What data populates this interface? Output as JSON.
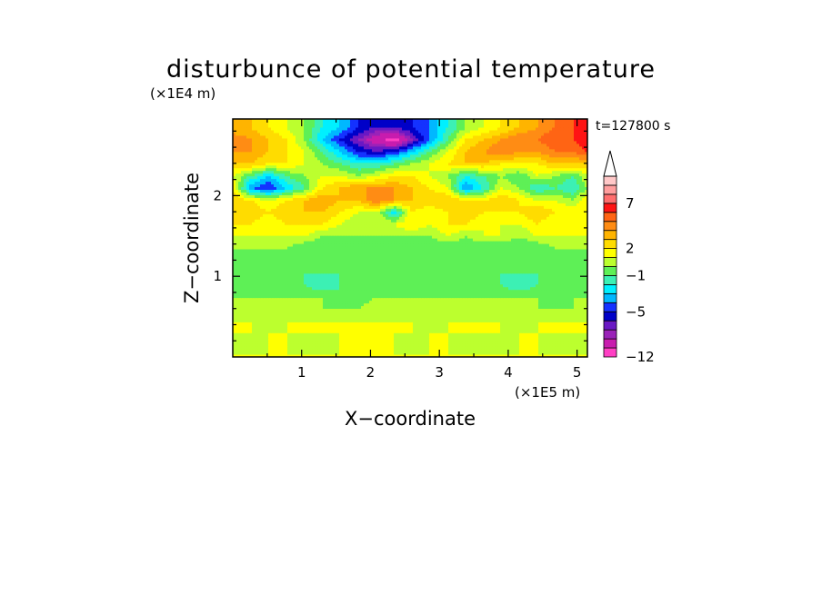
{
  "chart_data": {
    "type": "heatmap",
    "title": "disturbunce of potential temperature",
    "xlabel": "X−coordinate",
    "ylabel": "Z−coordinate",
    "x_unit": "(×1E5 m)",
    "y_unit": "(×1E4 m)",
    "time_label": "t=127800 s",
    "xlim": [
      0,
      5.15
    ],
    "ylim": [
      0,
      2.95
    ],
    "x_ticks": [
      {
        "v": 1,
        "label": "1"
      },
      {
        "v": 2,
        "label": "2"
      },
      {
        "v": 3,
        "label": "3"
      },
      {
        "v": 4,
        "label": "4"
      },
      {
        "v": 5,
        "label": "5"
      }
    ],
    "y_ticks": [
      {
        "v": 1,
        "label": "1"
      },
      {
        "v": 2,
        "label": "2"
      }
    ],
    "colorbar": {
      "levels": [
        -12,
        -10,
        -8,
        -7,
        -6,
        -5,
        -4,
        -3,
        -2,
        -1,
        0,
        1,
        2,
        3,
        4,
        5,
        6,
        7,
        8,
        9,
        10
      ],
      "colors": [
        "#ff3fc4",
        "#c81cae",
        "#9a22b8",
        "#6a18c4",
        "#0000c8",
        "#1432ff",
        "#00b8ff",
        "#00f0ff",
        "#3cf0b4",
        "#5ef056",
        "#bcff2e",
        "#ffff00",
        "#ffdc00",
        "#ffb400",
        "#ff8c14",
        "#ff6414",
        "#ff1414",
        "#ff6e6e",
        "#ff9e9e",
        "#ffc8c8"
      ],
      "tick_labels": [
        {
          "v": 7,
          "label": "7"
        },
        {
          "v": 2,
          "label": "2"
        },
        {
          "v": -1,
          "label": "−1"
        },
        {
          "v": -5,
          "label": "−5"
        },
        {
          "v": -12,
          "label": "−12"
        }
      ],
      "extend": "max"
    },
    "z_rows": [
      {
        "z": 2.85,
        "v": [
          3,
          3,
          2,
          1,
          0,
          -2,
          -3,
          -5,
          -6,
          -6,
          -5,
          -4,
          -2,
          0,
          1,
          2,
          3,
          4,
          5,
          6,
          6
        ]
      },
      {
        "z": 2.7,
        "v": [
          5,
          4,
          3,
          2,
          0,
          -3,
          -5,
          -7,
          -9,
          -11,
          -7,
          -4,
          -1,
          2,
          3,
          4,
          5,
          5,
          6,
          6,
          7
        ]
      },
      {
        "z": 2.55,
        "v": [
          4,
          4,
          3,
          2,
          1,
          -1,
          -3,
          -5,
          -6,
          -5,
          -3,
          -1,
          1,
          3,
          4,
          5,
          4,
          4,
          5,
          5,
          6
        ]
      },
      {
        "z": 2.4,
        "v": [
          3,
          3,
          2,
          2,
          1,
          0,
          -1,
          -2,
          -2,
          -1,
          0,
          1,
          2,
          3,
          3,
          2,
          2,
          2,
          3,
          3,
          3
        ]
      },
      {
        "z": 2.25,
        "v": [
          1,
          -1,
          -3,
          -1,
          0,
          1,
          1,
          0,
          1,
          2,
          2,
          1,
          0,
          -2,
          -1,
          0,
          -1,
          1,
          0,
          -1,
          1
        ]
      },
      {
        "z": 2.1,
        "v": [
          2,
          -4,
          -5,
          -3,
          -1,
          2,
          3,
          4,
          4,
          4,
          3,
          2,
          1,
          -4,
          -2,
          1,
          0,
          -2,
          -1,
          -2,
          0
        ]
      },
      {
        "z": 1.95,
        "v": [
          3,
          2,
          1,
          2,
          3,
          4,
          3,
          3,
          5,
          4,
          3,
          3,
          3,
          2,
          2,
          3,
          2,
          1,
          1,
          0,
          2
        ]
      },
      {
        "z": 1.8,
        "v": [
          3,
          3,
          2,
          3,
          3,
          3,
          2,
          1,
          1,
          -3,
          2,
          1,
          2,
          3,
          2,
          2,
          2,
          3,
          2,
          2,
          2
        ]
      },
      {
        "z": 1.65,
        "v": [
          2,
          2,
          1,
          2,
          2,
          2,
          1,
          0,
          1,
          1,
          2,
          1,
          2,
          2,
          1,
          1,
          1,
          2,
          1,
          1,
          1
        ]
      },
      {
        "z": 1.5,
        "v": [
          1,
          1,
          1,
          1,
          1,
          0,
          0,
          0,
          0,
          0,
          0,
          0,
          1,
          0,
          1,
          1,
          0,
          1,
          1,
          1,
          1
        ]
      },
      {
        "z": 1.35,
        "v": [
          0,
          0,
          0,
          0,
          -1,
          -1,
          -1,
          -1,
          -1,
          -1,
          -1,
          -1,
          -1,
          -1,
          -1,
          -1,
          -1,
          -1,
          0,
          0,
          0
        ]
      },
      {
        "z": 1.2,
        "v": [
          -1,
          -1,
          -1,
          -1,
          -1,
          -1,
          -1,
          -1,
          -1,
          -1,
          -1,
          -1,
          -1,
          -1,
          -1,
          -1,
          -1,
          -1,
          -1,
          -1,
          -1
        ]
      },
      {
        "z": 1.05,
        "v": [
          -1,
          -1,
          -1,
          -1,
          -1,
          -1,
          -1,
          -1,
          -1,
          -1,
          -1,
          -1,
          -1,
          -1,
          -1,
          -1,
          -1,
          -1,
          -1,
          -1,
          -1
        ]
      },
      {
        "z": 0.9,
        "v": [
          -1,
          -1,
          -1,
          -1,
          -1,
          -2,
          -1,
          -1,
          -1,
          -1,
          -1,
          -1,
          -1,
          -1,
          -1,
          -1,
          -2,
          -1,
          -1,
          -1,
          -1
        ]
      },
      {
        "z": 0.75,
        "v": [
          0,
          0,
          0,
          0,
          0,
          0,
          -1,
          -1,
          0,
          0,
          0,
          0,
          0,
          0,
          0,
          0,
          0,
          0,
          -1,
          0,
          0
        ]
      },
      {
        "z": 0.6,
        "v": [
          0,
          1,
          0,
          0,
          1,
          0,
          0,
          0,
          1,
          0,
          0,
          0,
          1,
          0,
          0,
          1,
          0,
          0,
          0,
          0,
          1
        ]
      },
      {
        "z": 0.45,
        "v": [
          1,
          1,
          0,
          1,
          1,
          1,
          1,
          1,
          1,
          1,
          1,
          0,
          1,
          1,
          1,
          1,
          0,
          1,
          1,
          1,
          1
        ]
      },
      {
        "z": 0.3,
        "v": [
          1,
          1,
          1,
          1,
          1,
          1,
          1,
          1,
          1,
          1,
          1,
          1,
          1,
          1,
          1,
          1,
          1,
          1,
          1,
          1,
          1
        ]
      },
      {
        "z": 0.15,
        "v": [
          0,
          0,
          1,
          1,
          0,
          0,
          1,
          1,
          1,
          1,
          0,
          1,
          1,
          0,
          1,
          0,
          1,
          1,
          0,
          0,
          1
        ]
      },
      {
        "z": 0.03,
        "v": [
          1,
          1,
          1,
          1,
          1,
          1,
          1,
          1,
          1,
          1,
          1,
          1,
          1,
          1,
          1,
          1,
          1,
          1,
          1,
          1,
          1
        ]
      }
    ],
    "x_nodes": [
      0.0,
      0.26,
      0.52,
      0.78,
      1.04,
      1.3,
      1.56,
      1.82,
      2.08,
      2.34,
      2.6,
      2.86,
      3.12,
      3.38,
      3.64,
      3.9,
      4.16,
      4.42,
      4.68,
      4.94,
      5.15
    ]
  }
}
